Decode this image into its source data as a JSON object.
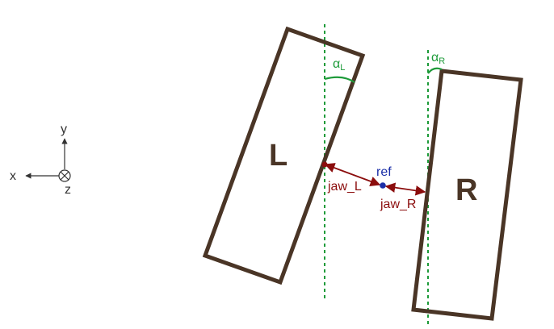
{
  "axes": {
    "x_label": "x",
    "y_label": "y",
    "z_label": "z"
  },
  "jaws": {
    "left": {
      "letter": "L",
      "jaw_label": "jaw_L",
      "angle_label": "α",
      "angle_subscript": "L"
    },
    "right": {
      "letter": "R",
      "jaw_label": "jaw_R",
      "angle_label": "α",
      "angle_subscript": "R"
    }
  },
  "reference": {
    "label": "ref"
  },
  "colors": {
    "jaw_outline": "#4a3526",
    "guide_line": "#1e9b3a",
    "angle": "#1e9b3a",
    "measure": "#8b0d0d",
    "reference": "#1b2fa8",
    "axis": "#333333"
  }
}
